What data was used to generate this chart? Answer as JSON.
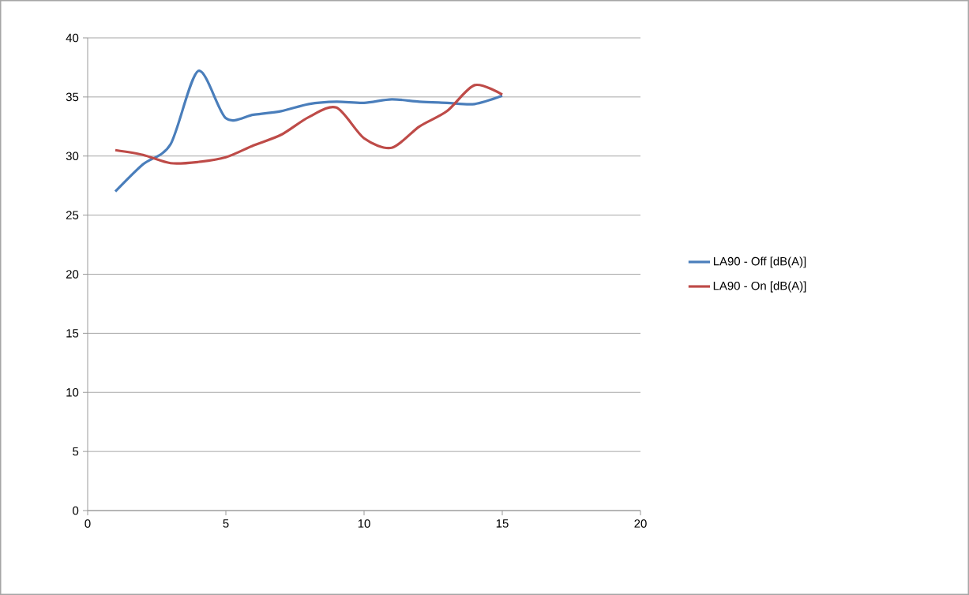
{
  "chart_data": {
    "type": "line",
    "x": [
      1,
      2,
      3,
      4,
      5,
      6,
      7,
      8,
      9,
      10,
      11,
      12,
      13,
      14,
      15
    ],
    "series": [
      {
        "name": "LA90 - Off [dB(A)]",
        "color": "#4a7ebb",
        "values": [
          27.0,
          29.3,
          31.0,
          37.2,
          33.2,
          33.5,
          33.8,
          34.4,
          34.6,
          34.5,
          34.8,
          34.6,
          34.5,
          34.4,
          35.1
        ]
      },
      {
        "name": "LA90 - On [dB(A)]",
        "color": "#be4b48",
        "values": [
          30.5,
          30.1,
          29.4,
          29.5,
          29.9,
          30.9,
          31.8,
          33.3,
          34.1,
          31.5,
          30.7,
          32.5,
          33.8,
          36.0,
          35.2
        ]
      }
    ],
    "xlim": [
      0,
      20
    ],
    "xticks": [
      0,
      5,
      10,
      15,
      20
    ],
    "ylim": [
      0,
      40
    ],
    "yticks": [
      0,
      5,
      10,
      15,
      20,
      25,
      30,
      35,
      40
    ],
    "grid": "y",
    "legend": "right",
    "marker": "none",
    "line_style": "solid"
  }
}
